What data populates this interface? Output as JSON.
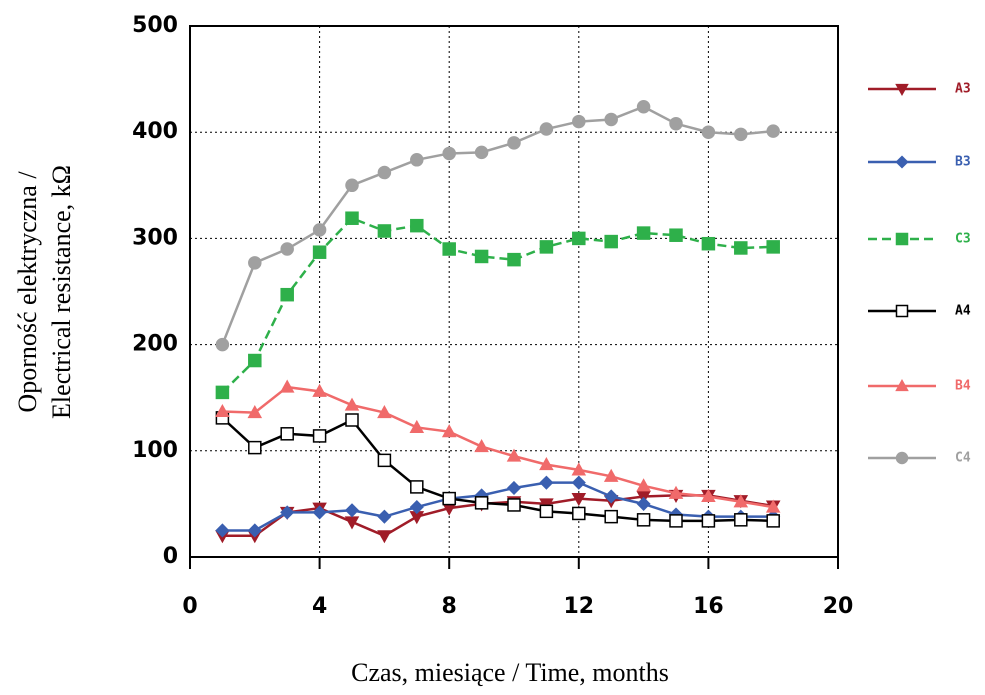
{
  "chart_data": {
    "type": "line",
    "x_label": "Czas, miesiące / Time, months",
    "y_label": [
      "Oporność elektryczna /",
      "Electrical resistance, kΩ"
    ],
    "x": [
      1,
      2,
      3,
      4,
      5,
      6,
      7,
      8,
      9,
      10,
      11,
      12,
      13,
      14,
      15,
      16,
      17,
      18
    ],
    "xlim": [
      0,
      20
    ],
    "xticks": [
      0,
      4,
      8,
      12,
      16,
      20
    ],
    "ylim": [
      0,
      500
    ],
    "yticks": [
      0,
      100,
      200,
      300,
      400,
      500
    ],
    "grid": true,
    "legend": "right",
    "series": [
      {
        "name": "A3",
        "color": "#a01c28",
        "marker": "triangle-down",
        "dashed": false,
        "values": [
          20,
          20,
          42,
          46,
          33,
          20,
          38,
          46,
          50,
          52,
          50,
          55,
          53,
          57,
          58,
          58,
          53,
          48
        ]
      },
      {
        "name": "B3",
        "color": "#3a5fb0",
        "marker": "diamond",
        "dashed": false,
        "values": [
          25,
          25,
          42,
          42,
          44,
          38,
          47,
          55,
          58,
          65,
          70,
          70,
          57,
          50,
          40,
          38,
          38,
          38
        ]
      },
      {
        "name": "C3",
        "color": "#2eb04a",
        "marker": "square",
        "dashed": true,
        "values": [
          155,
          185,
          247,
          287,
          319,
          307,
          312,
          290,
          283,
          280,
          292,
          300,
          297,
          305,
          303,
          295,
          291,
          292
        ]
      },
      {
        "name": "A4",
        "color": "#000000",
        "marker": "square-open",
        "dashed": false,
        "values": [
          131,
          103,
          116,
          114,
          129,
          91,
          66,
          55,
          51,
          49,
          43,
          41,
          38,
          35,
          34,
          34,
          35,
          34
        ]
      },
      {
        "name": "B4",
        "color": "#f06a6a",
        "marker": "triangle-up",
        "dashed": false,
        "values": [
          137,
          136,
          160,
          156,
          143,
          136,
          122,
          118,
          104,
          95,
          87,
          82,
          76,
          67,
          60,
          57,
          52,
          47
        ]
      },
      {
        "name": "C4",
        "color": "#a0a0a0",
        "marker": "circle",
        "dashed": false,
        "values": [
          200,
          277,
          290,
          308,
          350,
          362,
          374,
          380,
          381,
          390,
          403,
          410,
          412,
          424,
          408,
          400,
          398,
          401
        ]
      }
    ]
  }
}
